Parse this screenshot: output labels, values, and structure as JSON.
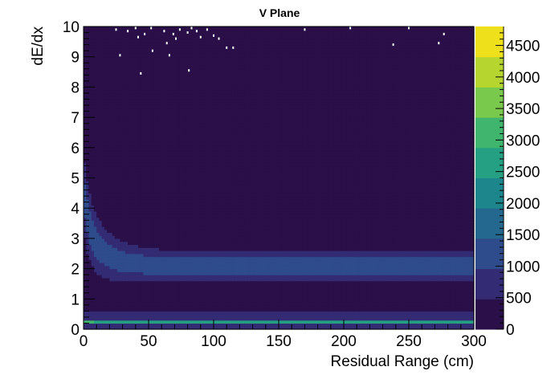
{
  "chart_data": {
    "type": "heatmap",
    "title": "V Plane",
    "xlabel": "Residual Range (cm)",
    "ylabel": "dE/dx",
    "xlim": [
      0,
      300
    ],
    "ylim": [
      0,
      10
    ],
    "x_ticks": [
      0,
      50,
      100,
      150,
      200,
      250,
      300
    ],
    "y_ticks": [
      0,
      1,
      2,
      3,
      4,
      5,
      6,
      7,
      8,
      9,
      10
    ],
    "z_ticks": [
      0,
      500,
      1000,
      1500,
      2000,
      2500,
      3000,
      3500,
      4000,
      4500
    ],
    "zlim": [
      0,
      4800
    ],
    "colormap": "viridis",
    "color_stops": [
      "#2a0f48",
      "#332b73",
      "#2e4b8b",
      "#24688f",
      "#1d858c",
      "#25a083",
      "#3fb56d",
      "#79c94c",
      "#b6d52f",
      "#eee01a"
    ],
    "grid": false,
    "legend": "colorbar-right",
    "bins": {
      "nx": 150,
      "ny": 100,
      "description_values": {
        "band_peak_dEdx_at_far_range": 2.1,
        "band_peak_dEdx_at_near_range": 3.4,
        "band_peak_counts": 1200,
        "low_dEdx_line_value": 0.25,
        "low_dEdx_line_counts": 2500,
        "background_counts": 150
      }
    },
    "outliers": [
      [
        25,
        9.9
      ],
      [
        28,
        9.05
      ],
      [
        34,
        9.85
      ],
      [
        40,
        9.95
      ],
      [
        42,
        9.65
      ],
      [
        44,
        8.45
      ],
      [
        47,
        9.75
      ],
      [
        52,
        9.95
      ],
      [
        53,
        9.2
      ],
      [
        62,
        9.85
      ],
      [
        64,
        9.45
      ],
      [
        66,
        9.05
      ],
      [
        69,
        9.75
      ],
      [
        71,
        9.6
      ],
      [
        74,
        9.9
      ],
      [
        80,
        9.8
      ],
      [
        81,
        8.55
      ],
      [
        83,
        9.95
      ],
      [
        87,
        9.85
      ],
      [
        90,
        9.65
      ],
      [
        95,
        9.9
      ],
      [
        100,
        9.7
      ],
      [
        104,
        9.6
      ],
      [
        110,
        9.3
      ],
      [
        115,
        9.3
      ],
      [
        170,
        9.9
      ],
      [
        205,
        9.95
      ],
      [
        238,
        9.4
      ],
      [
        250,
        9.95
      ],
      [
        273,
        9.45
      ],
      [
        277,
        9.75
      ]
    ]
  }
}
